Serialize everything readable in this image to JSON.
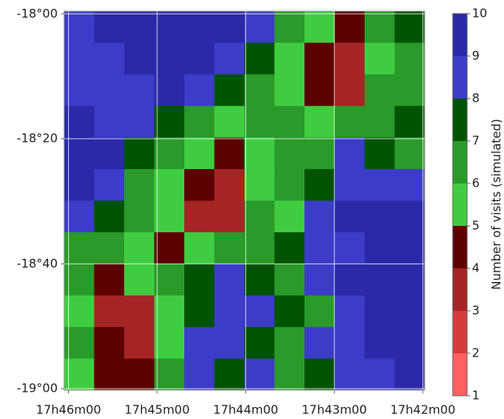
{
  "chart_data": {
    "type": "heatmap",
    "ylabel_right": "Number of visits (simulated)",
    "xlim": [
      46.05,
      41.98
    ],
    "ylim": [
      -17.993,
      -19.004
    ],
    "xticks": [
      {
        "value": 46,
        "label": "17h46m00"
      },
      {
        "value": 45,
        "label": "17h45m00"
      },
      {
        "value": 44,
        "label": "17h44m00"
      },
      {
        "value": 43,
        "label": "17h43m00"
      },
      {
        "value": 42,
        "label": "17h42m00"
      }
    ],
    "yticks": [
      {
        "value": -18,
        "label": "-18°00"
      },
      {
        "value": -18.333,
        "label": "-18°20"
      },
      {
        "value": -18.667,
        "label": "-18°40"
      },
      {
        "value": -19,
        "label": "-19°00"
      }
    ],
    "grid": true,
    "z": [
      [
        8,
        9,
        9,
        9,
        9,
        9,
        8,
        6,
        5,
        4,
        6,
        7
      ],
      [
        8,
        8,
        9,
        9,
        9,
        8,
        7,
        5,
        4,
        3,
        5,
        6
      ],
      [
        8,
        8,
        8,
        9,
        8,
        7,
        6,
        5,
        4,
        3,
        6,
        6
      ],
      [
        9,
        8,
        8,
        7,
        6,
        5,
        6,
        6,
        5,
        6,
        6,
        7
      ],
      [
        9,
        9,
        7,
        6,
        5,
        4,
        5,
        6,
        6,
        8,
        7,
        6
      ],
      [
        9,
        8,
        6,
        5,
        4,
        3,
        5,
        6,
        7,
        8,
        8,
        8
      ],
      [
        8,
        7,
        6,
        5,
        3,
        3,
        6,
        5,
        8,
        9,
        9,
        9
      ],
      [
        6,
        6,
        5,
        4,
        5,
        6,
        6,
        7,
        8,
        8,
        9,
        9
      ],
      [
        6,
        4,
        5,
        6,
        7,
        8,
        7,
        6,
        8,
        9,
        9,
        9
      ],
      [
        5,
        3,
        3,
        5,
        7,
        8,
        8,
        7,
        6,
        8,
        9,
        9
      ],
      [
        6,
        4,
        3,
        5,
        8,
        8,
        7,
        6,
        8,
        8,
        9,
        9
      ],
      [
        5,
        4,
        4,
        6,
        8,
        7,
        8,
        6,
        7,
        8,
        8,
        9
      ]
    ],
    "colorbar": {
      "ticks": [
        1,
        2,
        3,
        4,
        5,
        6,
        7,
        8,
        9,
        10
      ],
      "colors": [
        "#ff6060",
        "#d43c3c",
        "#a52525",
        "#5c0000",
        "#40cc40",
        "#2a9a2a",
        "#005400",
        "#3c3cc8",
        "#2a2aa8",
        "#0c0c70"
      ]
    }
  }
}
